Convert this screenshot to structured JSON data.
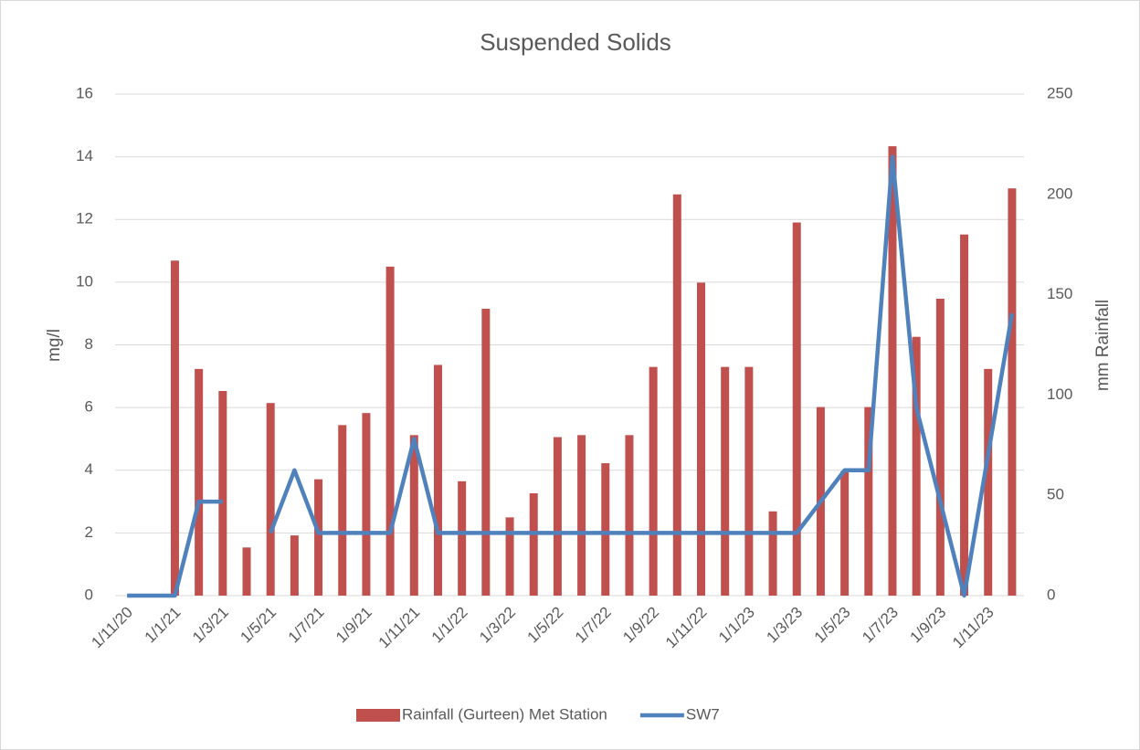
{
  "chart_data": {
    "type": "bar_line",
    "title": "Suspended Solids",
    "y_label": "mg/l",
    "y2_label": "mm Rainfall",
    "categories": [
      "1/11/20",
      null,
      "1/1/21",
      null,
      "1/3/21",
      null,
      "1/5/21",
      null,
      "1/7/21",
      null,
      "1/9/21",
      null,
      "1/11/21",
      null,
      "1/1/22",
      null,
      "1/3/22",
      null,
      "1/5/22",
      null,
      "1/7/22",
      null,
      "1/9/22",
      null,
      "1/11/22",
      null,
      "1/1/23",
      null,
      "1/3/23",
      null,
      "1/5/23",
      null,
      "1/7/23",
      null,
      "1/9/23",
      null,
      "1/11/23",
      null
    ],
    "series": [
      {
        "name": "Rainfall (Gurteen) Met Station",
        "color": "#c0504d",
        "kind": "bar",
        "axis": "y2",
        "values": [
          null,
          null,
          167,
          113,
          102,
          24,
          96,
          30,
          58,
          85,
          91,
          164,
          80,
          115,
          57,
          143,
          39,
          51,
          79,
          80,
          66,
          80,
          114,
          200,
          156,
          114,
          114,
          42,
          186,
          94,
          62,
          94,
          224,
          129,
          148,
          180,
          113,
          203
        ]
      },
      {
        "name": "SW7",
        "color": "#4f81bd",
        "kind": "line",
        "values": [
          0,
          0,
          0,
          3,
          3,
          null,
          2,
          4,
          2,
          2,
          2,
          2,
          5,
          2,
          2,
          2,
          2,
          2,
          2,
          2,
          2,
          2,
          2,
          2,
          2,
          2,
          2,
          2,
          2,
          3,
          4,
          4,
          14,
          6,
          3,
          0,
          4.5,
          9
        ]
      }
    ],
    "ylim": [
      0,
      16
    ],
    "yticks": [
      0,
      2,
      4,
      6,
      8,
      10,
      12,
      14,
      16
    ],
    "y2lim": [
      0,
      250
    ],
    "y2ticks": [
      0,
      50,
      100,
      150,
      200,
      250
    ],
    "grid": true,
    "legend": "bottom"
  }
}
